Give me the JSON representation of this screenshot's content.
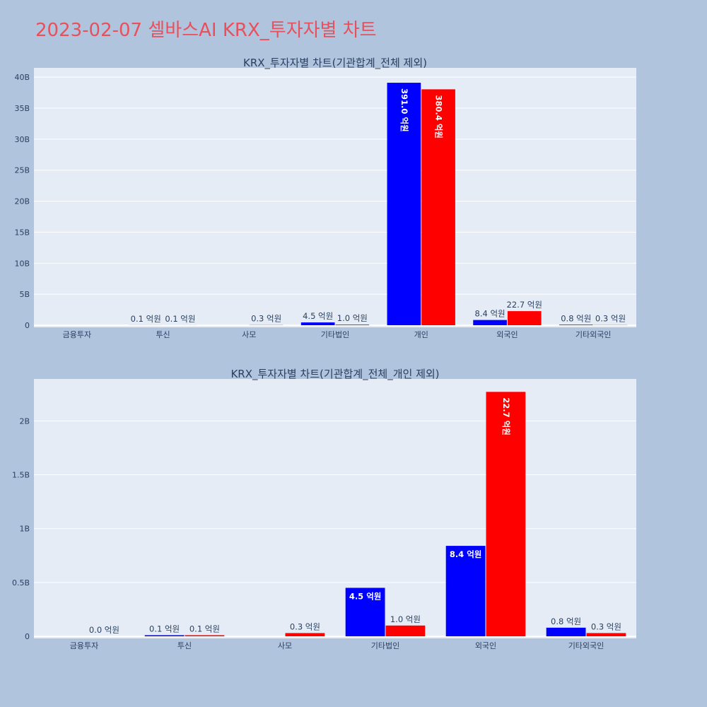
{
  "page": {
    "title": "2023-02-07 셀바스AI KRX_투자자별 차트"
  },
  "colors": {
    "background": "#b0c4de",
    "plot_bg": "#e5ecf6",
    "grid": "#ffffff",
    "title": "#e8505b",
    "series_blue": "#0000ff",
    "series_red": "#ff0000"
  },
  "chart_data": [
    {
      "type": "bar",
      "title": "KRX_투자자별 차트(기관합계_전체 제외)",
      "categories": [
        "금융투자",
        "투신",
        "사모",
        "기타법인",
        "개인",
        "외국인",
        "기타외국인"
      ],
      "series": [
        {
          "color": "#0000ff",
          "values": [
            0,
            10000000,
            0,
            450000000,
            39100000000,
            840000000,
            80000000
          ],
          "labels": [
            "",
            "0.1 억원",
            "",
            "4.5 억원",
            "391.0 억원",
            "8.4 억원",
            "0.8 억원"
          ]
        },
        {
          "color": "#ff0000",
          "values": [
            0,
            10000000,
            30000000,
            100000000,
            38040000000,
            2270000000,
            30000000
          ],
          "labels": [
            "",
            "0.1 억원",
            "0.3 억원",
            "1.0 억원",
            "380.4 억원",
            "22.7 억원",
            "0.3 억원"
          ]
        }
      ],
      "yticks": [
        0,
        5000000000,
        10000000000,
        15000000000,
        20000000000,
        25000000000,
        30000000000,
        35000000000,
        40000000000
      ],
      "yticklabels": [
        "0",
        "5B",
        "10B",
        "15B",
        "20B",
        "25B",
        "30B",
        "35B",
        "40B"
      ],
      "ylim": [
        0,
        41500000000
      ],
      "grid": true,
      "legend": "none"
    },
    {
      "type": "bar",
      "title": "KRX_투자자별 차트(기관합계_전체_개인 제외)",
      "categories": [
        "금융투자",
        "투신",
        "사모",
        "기타법인",
        "외국인",
        "기타외국인"
      ],
      "series": [
        {
          "color": "#0000ff",
          "values": [
            0,
            10000000,
            0,
            450000000,
            840000000,
            80000000
          ],
          "labels": [
            "",
            "0.1 억원",
            "",
            "4.5 억원",
            "8.4 억원",
            "0.8 억원"
          ]
        },
        {
          "color": "#ff0000",
          "values": [
            0,
            10000000,
            30000000,
            100000000,
            2270000000,
            30000000
          ],
          "labels": [
            "0.0 억원",
            "0.1 억원",
            "0.3 억원",
            "1.0 억원",
            "22.7 억원",
            "0.3 억원"
          ]
        }
      ],
      "yticks": [
        0,
        500000000,
        1000000000,
        1500000000,
        2000000000
      ],
      "yticklabels": [
        "0",
        "0.5B",
        "1B",
        "1.5B",
        "2B"
      ],
      "ylim": [
        0,
        2390000000
      ],
      "grid": true,
      "legend": "none"
    }
  ]
}
